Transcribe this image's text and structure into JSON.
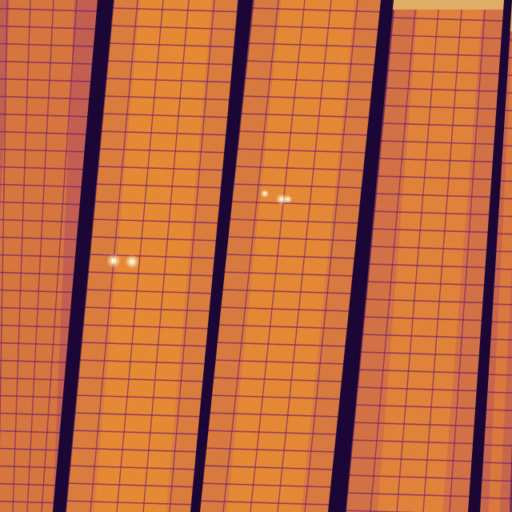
{
  "image": {
    "kind": "thermal-aerial-photo",
    "subject": "solar-panel-rows",
    "palette": {
      "background": "#2a0a4a",
      "gap_dark": "#1c0636",
      "gap_edge": "#3a0c5e",
      "panel_cool": "#9a2f6e",
      "panel_mid": "#d9683a",
      "panel_warm": "#f39a2c",
      "cell_line": "#7a2468",
      "hot_spot": "#fff6c8",
      "ground": "#f2c06a"
    }
  },
  "rows": [
    {
      "id": "row-1",
      "warmth": 0.45
    },
    {
      "id": "row-2",
      "warmth": 0.72
    },
    {
      "id": "row-3",
      "warmth": 0.7
    },
    {
      "id": "row-4",
      "warmth": 0.62
    },
    {
      "id": "row-5",
      "warmth": 0.5
    }
  ]
}
